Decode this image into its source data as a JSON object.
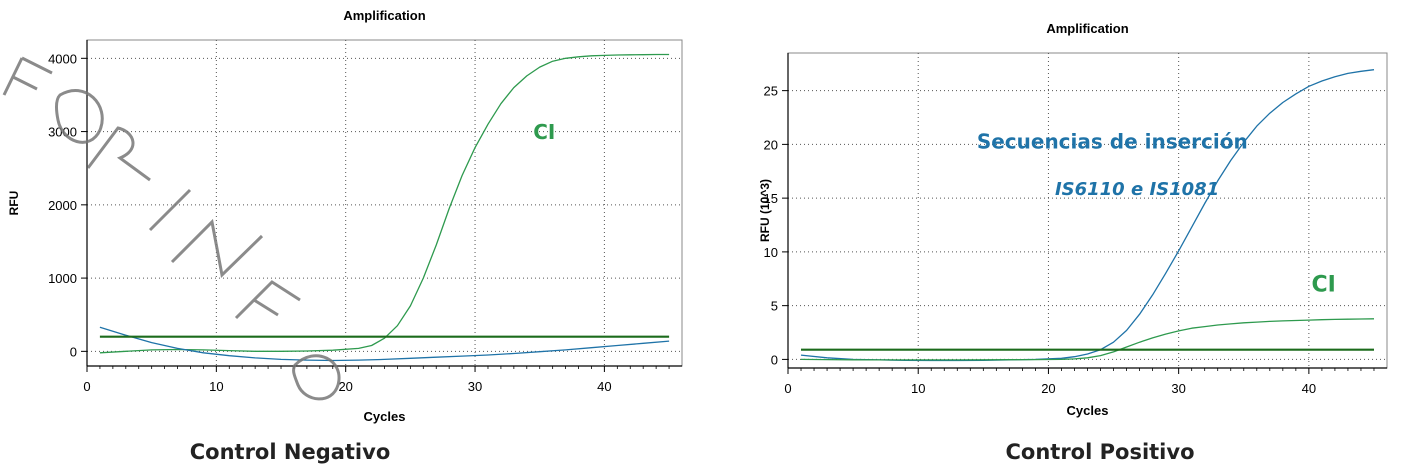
{
  "captions": {
    "left": "Control Negativo",
    "right": "Control Positivo"
  },
  "watermark": "FOR INFO",
  "colors": {
    "ci_green": "#2e9a4e",
    "is_blue": "#1f73a8",
    "threshold": "#1c6b1c",
    "axis": "#000000"
  },
  "chart_data": [
    {
      "type": "line",
      "title": "Amplification",
      "xlabel": "Cycles",
      "ylabel": "RFU",
      "xlim": [
        0,
        46
      ],
      "ylim": [
        -200,
        4250
      ],
      "x_ticks": [
        0,
        10,
        20,
        30,
        40
      ],
      "y_ticks": [
        0,
        1000,
        2000,
        3000,
        4000
      ],
      "grid": true,
      "annotations": [
        {
          "text": "CI",
          "x": 34.5,
          "y": 2900,
          "color": "#2e9a4e"
        }
      ],
      "series": [
        {
          "name": "CI",
          "color": "#2e9a4e",
          "x": [
            1,
            3,
            5,
            7,
            9,
            11,
            13,
            15,
            17,
            19,
            21,
            22,
            23,
            24,
            25,
            26,
            27,
            28,
            29,
            30,
            31,
            32,
            33,
            34,
            35,
            36,
            37,
            38,
            39,
            40,
            41,
            42,
            43,
            44,
            45
          ],
          "y": [
            -20,
            0,
            20,
            25,
            20,
            10,
            0,
            0,
            5,
            15,
            40,
            80,
            180,
            350,
            620,
            1000,
            1450,
            1950,
            2400,
            2780,
            3100,
            3380,
            3600,
            3760,
            3880,
            3960,
            4000,
            4020,
            4035,
            4040,
            4045,
            4048,
            4050,
            4052,
            4052
          ]
        },
        {
          "name": "",
          "color": "#1f73a8",
          "x": [
            1,
            3,
            5,
            7,
            9,
            11,
            13,
            15,
            17,
            19,
            21,
            23,
            25,
            27,
            29,
            31,
            33,
            35,
            37,
            39,
            41,
            43,
            45
          ],
          "y": [
            330,
            220,
            120,
            40,
            -20,
            -60,
            -90,
            -110,
            -120,
            -125,
            -120,
            -110,
            -95,
            -80,
            -65,
            -50,
            -30,
            -5,
            20,
            50,
            80,
            110,
            140
          ]
        },
        {
          "name": "",
          "color": "#1c6b1c",
          "x": [
            1,
            45
          ],
          "y": [
            200,
            200
          ]
        }
      ]
    },
    {
      "type": "line",
      "title": "Amplification",
      "xlabel": "Cycles",
      "ylabel": "RFU (10^3)",
      "xlim": [
        0,
        46
      ],
      "ylim": [
        -0.8,
        28.5
      ],
      "x_ticks": [
        0,
        10,
        20,
        30,
        40
      ],
      "y_ticks": [
        0,
        5,
        10,
        15,
        20,
        25
      ],
      "grid": true,
      "annotations": [
        {
          "text": "Secuencias de inserción",
          "x": 14.5,
          "y": 19.6,
          "color": "#1f73a8",
          "italic": false
        },
        {
          "text": "IS6110 e IS1081",
          "x": 20.5,
          "y": 15.3,
          "color": "#1f73a8",
          "italic": true
        },
        {
          "text": "CI",
          "x": 40.2,
          "y": 6.3,
          "color": "#2e9a4e",
          "italic": false
        }
      ],
      "series": [
        {
          "name": "",
          "color": "#1f73a8",
          "x": [
            1,
            3,
            5,
            7,
            9,
            11,
            13,
            15,
            17,
            19,
            21,
            22,
            23,
            24,
            25,
            26,
            27,
            28,
            29,
            30,
            31,
            32,
            33,
            34,
            35,
            36,
            37,
            38,
            39,
            40,
            41,
            42,
            43,
            44,
            45
          ],
          "y": [
            0.4,
            0.15,
            0.0,
            -0.05,
            -0.08,
            -0.1,
            -0.1,
            -0.08,
            -0.05,
            0.0,
            0.1,
            0.25,
            0.5,
            0.9,
            1.6,
            2.7,
            4.2,
            6.0,
            8.0,
            10.1,
            12.3,
            14.5,
            16.6,
            18.5,
            20.2,
            21.7,
            22.9,
            23.9,
            24.7,
            25.4,
            25.9,
            26.3,
            26.6,
            26.8,
            26.95
          ]
        },
        {
          "name": "CI",
          "color": "#2e9a4e",
          "x": [
            1,
            3,
            5,
            7,
            9,
            11,
            13,
            15,
            17,
            19,
            21,
            22,
            23,
            24,
            25,
            26,
            27,
            28,
            29,
            30,
            31,
            32,
            33,
            34,
            35,
            36,
            37,
            38,
            39,
            40,
            41,
            42,
            43,
            44,
            45
          ],
          "y": [
            0.0,
            -0.02,
            -0.04,
            -0.05,
            -0.05,
            -0.05,
            -0.05,
            -0.04,
            -0.03,
            -0.02,
            0.0,
            0.05,
            0.15,
            0.35,
            0.7,
            1.15,
            1.6,
            2.0,
            2.35,
            2.65,
            2.9,
            3.05,
            3.2,
            3.3,
            3.4,
            3.47,
            3.53,
            3.58,
            3.62,
            3.66,
            3.69,
            3.72,
            3.74,
            3.76,
            3.78
          ]
        },
        {
          "name": "",
          "color": "#1c6b1c",
          "x": [
            1,
            45
          ],
          "y": [
            0.9,
            0.9
          ]
        }
      ]
    }
  ]
}
